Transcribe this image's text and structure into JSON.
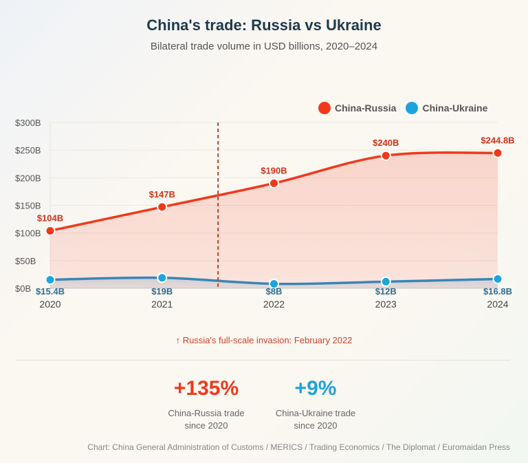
{
  "header": {
    "title": "China's trade: Russia vs Ukraine",
    "subtitle": "Bilateral trade volume in USD billions, 2020–2024"
  },
  "colors": {
    "russia": "#f0391c",
    "ukraine": "#1fa3dd",
    "ukraine_line": "#3a85b7",
    "invasion_line": "#c93a2a"
  },
  "legend": [
    {
      "label": "China-Russia",
      "color": "#f0391c"
    },
    {
      "label": "China-Ukraine",
      "color": "#1fa3dd"
    }
  ],
  "chart_data": {
    "type": "area",
    "title": "China's trade: Russia vs Ukraine",
    "categories": [
      "2020",
      "2021",
      "2022",
      "2023",
      "2024"
    ],
    "series": [
      {
        "name": "China-Russia",
        "values": [
          104,
          147,
          190,
          240,
          244.8
        ],
        "labels": [
          "$104B",
          "$147B",
          "$190B",
          "$240B",
          "$244.8B"
        ]
      },
      {
        "name": "China-Ukraine",
        "values": [
          15.4,
          19,
          8,
          12,
          16.8
        ],
        "labels": [
          "$15.4B",
          "$19B",
          "$8B",
          "$12B",
          "$16.8B"
        ]
      }
    ],
    "ylim": [
      0,
      300
    ],
    "y_ticks": [
      0,
      50,
      100,
      150,
      200,
      250,
      300
    ],
    "y_tick_labels": [
      "$0B",
      "$50B",
      "$100B",
      "$150B",
      "$200B",
      "$250B",
      "$300B"
    ],
    "grid": true,
    "legend_position": "top-right",
    "invasion_marker_x": 2021.5
  },
  "annotation": "↑ Russia's full-scale invasion: February 2022",
  "stats": [
    {
      "value": "+135%",
      "label": "China-Russia trade\nsince 2020",
      "color": "#f0391c"
    },
    {
      "value": "+9%",
      "label": "China-Ukraine trade\nsince 2020",
      "color": "#1fa3dd"
    }
  ],
  "source": "Chart: China General Administration of Customs / MERICS / Trading Economics / The Diplomat / Euromaidan Press"
}
